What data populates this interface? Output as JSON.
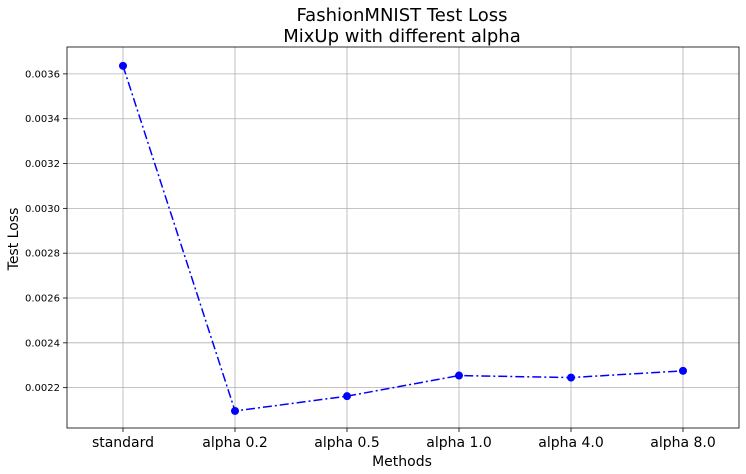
{
  "chart_data": {
    "type": "line",
    "title": "FashionMNIST Test Loss",
    "subtitle": "MixUp with different alpha",
    "xlabel": "Methods",
    "ylabel": "Test Loss",
    "categories": [
      "standard",
      "alpha 0.2",
      "alpha 0.5",
      "alpha 1.0",
      "alpha 4.0",
      "alpha 8.0"
    ],
    "series": [
      {
        "values": [
          0.003636,
          0.002096,
          0.002162,
          0.002254,
          0.002245,
          0.002275
        ],
        "color": "#0000ff",
        "line_style": "dash-dot",
        "marker": "circle"
      }
    ],
    "ylim": [
      0.00202,
      0.00372
    ],
    "yticks": [
      0.0022,
      0.0024,
      0.0026,
      0.0028,
      0.003,
      0.0032,
      0.0034,
      0.0036
    ],
    "ytick_labels": [
      "0.0022",
      "0.0024",
      "0.0026",
      "0.0028",
      "0.0030",
      "0.0032",
      "0.0034",
      "0.0036"
    ],
    "grid": true
  }
}
